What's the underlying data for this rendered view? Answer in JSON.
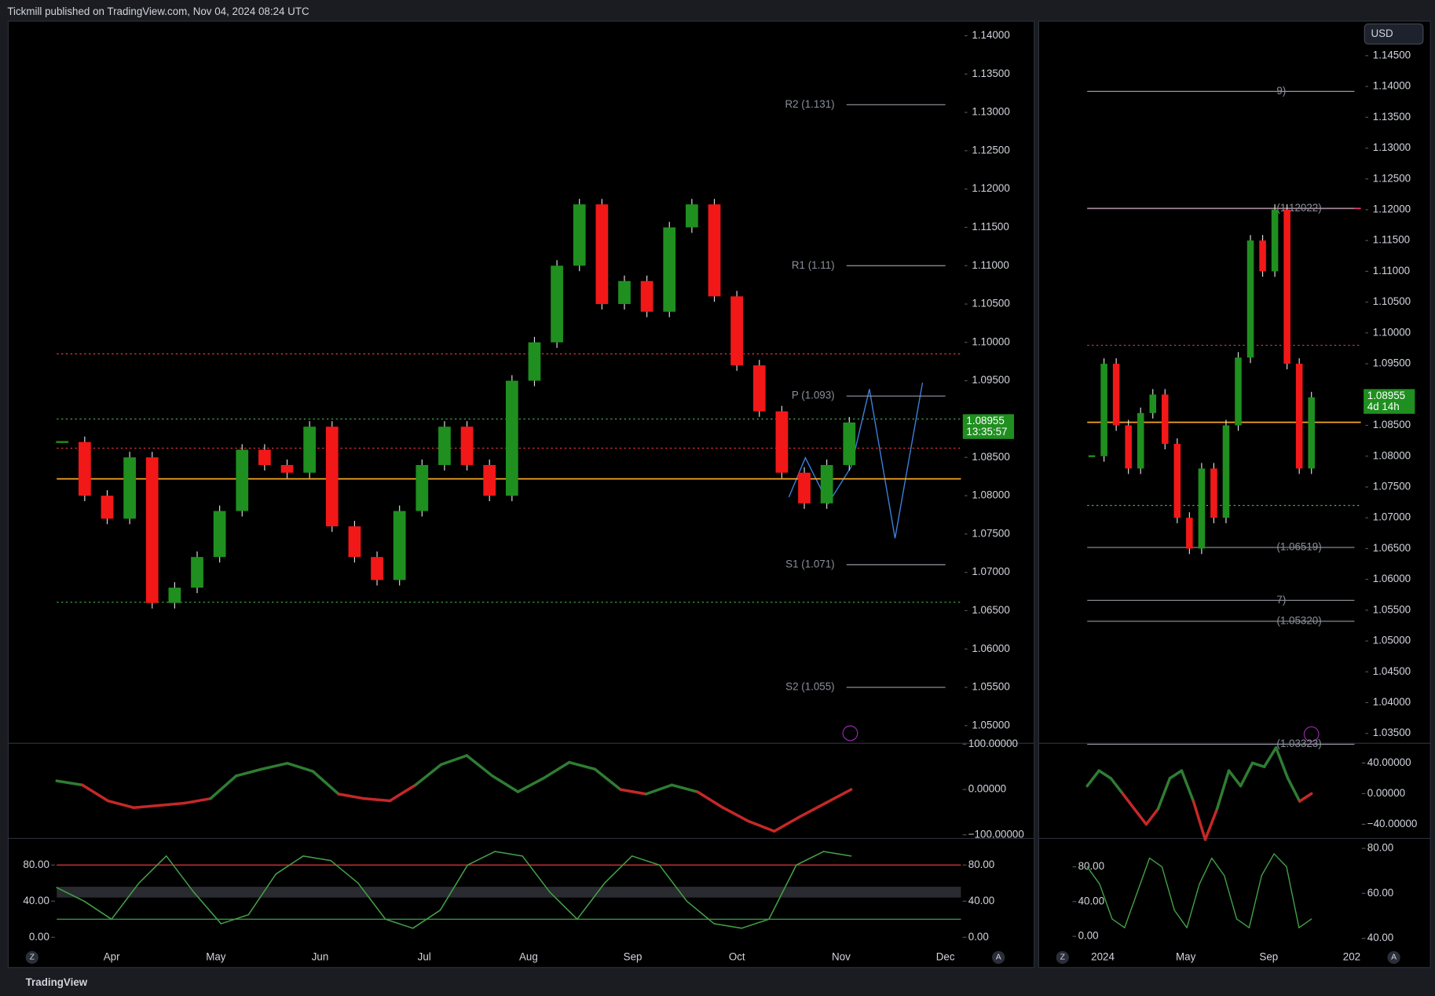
{
  "header": {
    "publisher": "Tickmill published on TradingView.com, Nov 04, 2024 08:24 UTC"
  },
  "footer": {
    "brand": "TradingView"
  },
  "buttons": {
    "currency": "USD",
    "left": "Z",
    "right": "A",
    "side_left": "Z",
    "side_right": "A"
  },
  "main_chart": {
    "type": "candlestick",
    "up_color": "#1f8f1f",
    "down_color": "#f21818",
    "ylim": [
      1.0477,
      1.1419
    ],
    "yticks": [
      {
        "value": 1.14,
        "label": "1.14000"
      },
      {
        "value": 1.135,
        "label": "1.13500"
      },
      {
        "value": 1.13,
        "label": "1.13000"
      },
      {
        "value": 1.125,
        "label": "1.12500"
      },
      {
        "value": 1.12,
        "label": "1.12000"
      },
      {
        "value": 1.115,
        "label": "1.11500"
      },
      {
        "value": 1.11,
        "label": "1.11000"
      },
      {
        "value": 1.105,
        "label": "1.10500"
      },
      {
        "value": 1.1,
        "label": "1.10000"
      },
      {
        "value": 1.095,
        "label": "1.09500"
      },
      {
        "value": 1.09,
        "label": "1.09000"
      },
      {
        "value": 1.085,
        "label": "1.08500"
      },
      {
        "value": 1.08,
        "label": "1.08000"
      },
      {
        "value": 1.075,
        "label": "1.07500"
      },
      {
        "value": 1.07,
        "label": "1.07000"
      },
      {
        "value": 1.065,
        "label": "1.06500"
      },
      {
        "value": 1.06,
        "label": "1.06000"
      },
      {
        "value": 1.055,
        "label": "1.05500"
      },
      {
        "value": 1.05,
        "label": "1.05000"
      }
    ],
    "categories": [
      "Apr",
      "May",
      "Jun",
      "Jul",
      "Aug",
      "Sep",
      "Oct",
      "Nov",
      "Dec"
    ],
    "closes": [
      1.087,
      1.08,
      1.077,
      1.085,
      1.066,
      1.068,
      1.072,
      1.078,
      1.086,
      1.084,
      1.083,
      1.089,
      1.076,
      1.072,
      1.069,
      1.078,
      1.084,
      1.089,
      1.084,
      1.08,
      1.095,
      1.1,
      1.11,
      1.118,
      1.105,
      1.108,
      1.104,
      1.115,
      1.118,
      1.106,
      1.097,
      1.091,
      1.083,
      1.079,
      1.084,
      1.08955
    ],
    "last_price": {
      "value": 1.08955,
      "label": "1.08955",
      "countdown": "13:35:57",
      "color": "#1f8f1f"
    },
    "pivots": [
      {
        "label": "R2 (1.131)",
        "value": 1.131
      },
      {
        "label": "R1 (1.11)",
        "value": 1.11
      },
      {
        "label": "P (1.093)",
        "value": 1.093
      },
      {
        "label": "S1 (1.071)",
        "value": 1.071
      },
      {
        "label": "S2 (1.055)",
        "value": 1.055
      }
    ],
    "levels": [
      {
        "value": 1.0822,
        "color": "#f5a623",
        "dotted": false
      },
      {
        "value": 1.0985,
        "color": "#f23645",
        "dotted": true
      },
      {
        "value": 1.0862,
        "color": "#f23645",
        "dotted": true
      },
      {
        "value": 1.09,
        "color": "#4caf50",
        "dotted": true
      },
      {
        "value": 1.0661,
        "color": "#4caf50",
        "dotted": true
      }
    ]
  },
  "cci": {
    "ylim": [
      -108,
      102
    ],
    "yticks": [
      {
        "value": 100,
        "label": "100.00000"
      },
      {
        "value": 0,
        "label": "0.00000"
      },
      {
        "value": -100,
        "label": "−100.00000"
      }
    ],
    "values": [
      19,
      10,
      -25,
      -40,
      -35,
      -30,
      -20,
      30,
      45,
      58,
      40,
      -10,
      -20,
      -25,
      10,
      55,
      75,
      30,
      -5,
      25,
      60,
      45,
      0,
      -10,
      10,
      -5,
      -40,
      -70,
      -92,
      -60,
      -30,
      0
    ],
    "up_color": "#2e7d32",
    "down_color": "#c62828"
  },
  "stoch": {
    "ylim": [
      -12.2,
      109.4
    ],
    "yticks": [
      {
        "value": 80,
        "label": "80.00"
      },
      {
        "value": 40,
        "label": "40.00"
      },
      {
        "value": 0,
        "label": "0.00"
      }
    ],
    "upper": 80,
    "lower": 20,
    "band": [
      44,
      56
    ],
    "k": [
      55,
      40,
      20,
      60,
      90,
      50,
      15,
      25,
      70,
      90,
      85,
      60,
      20,
      10,
      30,
      80,
      95,
      90,
      50,
      20,
      60,
      90,
      80,
      40,
      15,
      10,
      20,
      80,
      95,
      90
    ],
    "k_color": "#43a047"
  },
  "side_chart": {
    "type": "candlestick",
    "ylim": [
      1.0334,
      1.1506
    ],
    "yticks": [
      {
        "value": 1.145,
        "label": "1.14500"
      },
      {
        "value": 1.14,
        "label": "1.14000"
      },
      {
        "value": 1.135,
        "label": "1.13500"
      },
      {
        "value": 1.13,
        "label": "1.13000"
      },
      {
        "value": 1.125,
        "label": "1.12500"
      },
      {
        "value": 1.12,
        "label": "1.12000"
      },
      {
        "value": 1.115,
        "label": "1.11500"
      },
      {
        "value": 1.11,
        "label": "1.11000"
      },
      {
        "value": 1.105,
        "label": "1.10500"
      },
      {
        "value": 1.1,
        "label": "1.10000"
      },
      {
        "value": 1.095,
        "label": "1.09500"
      },
      {
        "value": 1.09,
        "label": "1.09000"
      },
      {
        "value": 1.085,
        "label": "1.08500"
      },
      {
        "value": 1.08,
        "label": "1.08000"
      },
      {
        "value": 1.075,
        "label": "1.07500"
      },
      {
        "value": 1.07,
        "label": "1.07000"
      },
      {
        "value": 1.065,
        "label": "1.06500"
      },
      {
        "value": 1.06,
        "label": "1.06000"
      },
      {
        "value": 1.055,
        "label": "1.05500"
      },
      {
        "value": 1.05,
        "label": "1.05000"
      },
      {
        "value": 1.045,
        "label": "1.04500"
      },
      {
        "value": 1.04,
        "label": "1.04000"
      },
      {
        "value": 1.035,
        "label": "1.03500"
      }
    ],
    "categories": [
      "2024",
      "May",
      "Sep",
      "202"
    ],
    "closes": [
      1.08,
      1.095,
      1.085,
      1.078,
      1.087,
      1.09,
      1.082,
      1.07,
      1.065,
      1.078,
      1.07,
      1.085,
      1.096,
      1.115,
      1.11,
      1.12,
      1.095,
      1.078,
      1.08955
    ],
    "last_price": {
      "value": 1.08955,
      "label": "1.08955",
      "countdown": "4d 14h"
    },
    "pivots": [
      {
        "label": "9)",
        "value": 1.1392
      },
      {
        "label": "(1.12022)",
        "value": 1.12022
      },
      {
        "label": "(1.06519)",
        "value": 1.06519
      },
      {
        "label": "7)",
        "value": 1.0566
      },
      {
        "label": "(1.05320)",
        "value": 1.0532
      },
      {
        "label": "(1.03323)",
        "value": 1.03323
      }
    ],
    "levels": [
      {
        "value": 1.0855,
        "color": "#f5a623",
        "dotted": false
      },
      {
        "value": 1.098,
        "color": "#f23645",
        "dotted": true
      },
      {
        "value": 1.072,
        "color": "#4caf50",
        "dotted": true
      },
      {
        "value": 1.1202,
        "color": "#f23670",
        "dotted": false
      }
    ]
  },
  "side_cci": {
    "ylim": [
      -58.5,
      65.7
    ],
    "yticks": [
      {
        "value": 40,
        "label": "40.00000"
      },
      {
        "value": 0,
        "label": "0.00000"
      },
      {
        "value": -40,
        "label": "−40.00000"
      }
    ],
    "values": [
      10,
      30,
      20,
      0,
      -20,
      -40,
      -20,
      20,
      30,
      -10,
      -60,
      -20,
      30,
      10,
      40,
      35,
      60,
      20,
      -10,
      0
    ]
  },
  "side_stoch": {
    "ylim": [
      -13.7,
      112.6
    ],
    "yticks": [
      {
        "value": 80,
        "label": "80.00"
      },
      {
        "value": 40,
        "label": "40.00"
      },
      {
        "value": 0,
        "label": "0.00"
      }
    ],
    "y2lim": [
      35.6,
      84.4
    ],
    "y2ticks": [
      {
        "value": 80,
        "label": "80.00"
      },
      {
        "value": 60,
        "label": "60.00"
      },
      {
        "value": 40,
        "label": "40.00"
      }
    ],
    "k": [
      80,
      60,
      20,
      10,
      50,
      90,
      80,
      30,
      10,
      60,
      90,
      70,
      20,
      10,
      70,
      95,
      80,
      10,
      20
    ]
  }
}
